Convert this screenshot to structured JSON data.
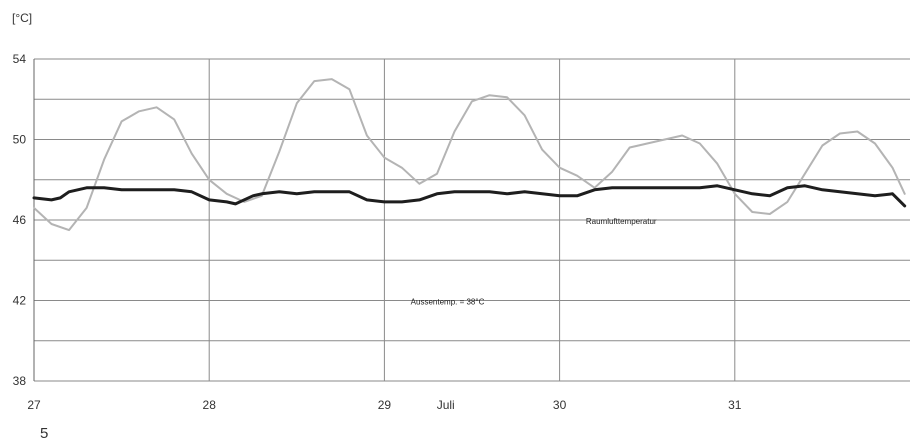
{
  "chart_data": {
    "type": "line",
    "unit_label": "[°C]",
    "ylim": [
      38,
      54
    ],
    "y_ticks": [
      "54",
      "50",
      "46",
      "42",
      "38"
    ],
    "y_gridlines": [
      38,
      40,
      42,
      44,
      46,
      48,
      50,
      52,
      54
    ],
    "xlim": [
      27,
      32
    ],
    "x_ticks": [
      {
        "value": 27,
        "label": "27"
      },
      {
        "value": 28,
        "label": "28"
      },
      {
        "value": 29,
        "label": "29"
      },
      {
        "value": 30,
        "label": "30"
      },
      {
        "value": 31,
        "label": "31"
      }
    ],
    "month_label": "Juli",
    "month_position": 29.35,
    "grid": true,
    "annotations": [
      {
        "text": "Raumlufttemperatur",
        "x": 30.15,
        "y": 45.8
      },
      {
        "text": "Aussentemp. = 38°C",
        "x": 29.15,
        "y": 41.8
      }
    ],
    "page_number": "5",
    "colors": {
      "raum": "#1e1e1e",
      "other": "#b4b4b4",
      "grid": "#8a8a8a"
    },
    "series": [
      {
        "style": "light",
        "points": [
          [
            27.0,
            46.6
          ],
          [
            27.1,
            45.8
          ],
          [
            27.2,
            45.5
          ],
          [
            27.3,
            46.6
          ],
          [
            27.4,
            49.0
          ],
          [
            27.5,
            50.9
          ],
          [
            27.6,
            51.4
          ],
          [
            27.7,
            51.6
          ],
          [
            27.8,
            51.0
          ],
          [
            27.9,
            49.3
          ],
          [
            28.0,
            48.0
          ],
          [
            28.1,
            47.3
          ],
          [
            28.2,
            46.9
          ],
          [
            28.3,
            47.2
          ],
          [
            28.4,
            49.4
          ],
          [
            28.5,
            51.8
          ],
          [
            28.6,
            52.9
          ],
          [
            28.7,
            53.0
          ],
          [
            28.8,
            52.5
          ],
          [
            28.9,
            50.2
          ],
          [
            29.0,
            49.1
          ],
          [
            29.1,
            48.6
          ],
          [
            29.2,
            47.8
          ],
          [
            29.3,
            48.3
          ],
          [
            29.4,
            50.4
          ],
          [
            29.5,
            51.9
          ],
          [
            29.6,
            52.2
          ],
          [
            29.7,
            52.1
          ],
          [
            29.8,
            51.2
          ],
          [
            29.9,
            49.5
          ],
          [
            30.0,
            48.6
          ],
          [
            30.1,
            48.2
          ],
          [
            30.2,
            47.6
          ],
          [
            30.3,
            48.4
          ],
          [
            30.4,
            49.6
          ],
          [
            30.5,
            49.8
          ],
          [
            30.6,
            50.0
          ],
          [
            30.7,
            50.2
          ],
          [
            30.8,
            49.8
          ],
          [
            30.9,
            48.8
          ],
          [
            31.0,
            47.3
          ],
          [
            31.1,
            46.4
          ],
          [
            31.2,
            46.3
          ],
          [
            31.3,
            46.9
          ],
          [
            31.4,
            48.3
          ],
          [
            31.5,
            49.7
          ],
          [
            31.6,
            50.3
          ],
          [
            31.7,
            50.4
          ],
          [
            31.8,
            49.8
          ],
          [
            31.9,
            48.6
          ],
          [
            31.97,
            47.3
          ]
        ]
      },
      {
        "name": "Raumlufttemperatur",
        "style": "dark",
        "points": [
          [
            27.0,
            47.1
          ],
          [
            27.1,
            47.0
          ],
          [
            27.15,
            47.1
          ],
          [
            27.2,
            47.4
          ],
          [
            27.3,
            47.6
          ],
          [
            27.4,
            47.6
          ],
          [
            27.5,
            47.5
          ],
          [
            27.6,
            47.5
          ],
          [
            27.7,
            47.5
          ],
          [
            27.8,
            47.5
          ],
          [
            27.9,
            47.4
          ],
          [
            28.0,
            47.0
          ],
          [
            28.1,
            46.9
          ],
          [
            28.15,
            46.8
          ],
          [
            28.25,
            47.2
          ],
          [
            28.3,
            47.3
          ],
          [
            28.4,
            47.4
          ],
          [
            28.5,
            47.3
          ],
          [
            28.6,
            47.4
          ],
          [
            28.7,
            47.4
          ],
          [
            28.8,
            47.4
          ],
          [
            28.9,
            47.0
          ],
          [
            29.0,
            46.9
          ],
          [
            29.1,
            46.9
          ],
          [
            29.2,
            47.0
          ],
          [
            29.3,
            47.3
          ],
          [
            29.4,
            47.4
          ],
          [
            29.5,
            47.4
          ],
          [
            29.6,
            47.4
          ],
          [
            29.7,
            47.3
          ],
          [
            29.8,
            47.4
          ],
          [
            29.9,
            47.3
          ],
          [
            30.0,
            47.2
          ],
          [
            30.1,
            47.2
          ],
          [
            30.2,
            47.5
          ],
          [
            30.3,
            47.6
          ],
          [
            30.4,
            47.6
          ],
          [
            30.5,
            47.6
          ],
          [
            30.6,
            47.6
          ],
          [
            30.7,
            47.6
          ],
          [
            30.8,
            47.6
          ],
          [
            30.9,
            47.7
          ],
          [
            31.0,
            47.5
          ],
          [
            31.1,
            47.3
          ],
          [
            31.2,
            47.2
          ],
          [
            31.3,
            47.6
          ],
          [
            31.4,
            47.7
          ],
          [
            31.5,
            47.5
          ],
          [
            31.6,
            47.4
          ],
          [
            31.7,
            47.3
          ],
          [
            31.8,
            47.2
          ],
          [
            31.9,
            47.3
          ],
          [
            31.97,
            46.7
          ]
        ]
      }
    ]
  }
}
